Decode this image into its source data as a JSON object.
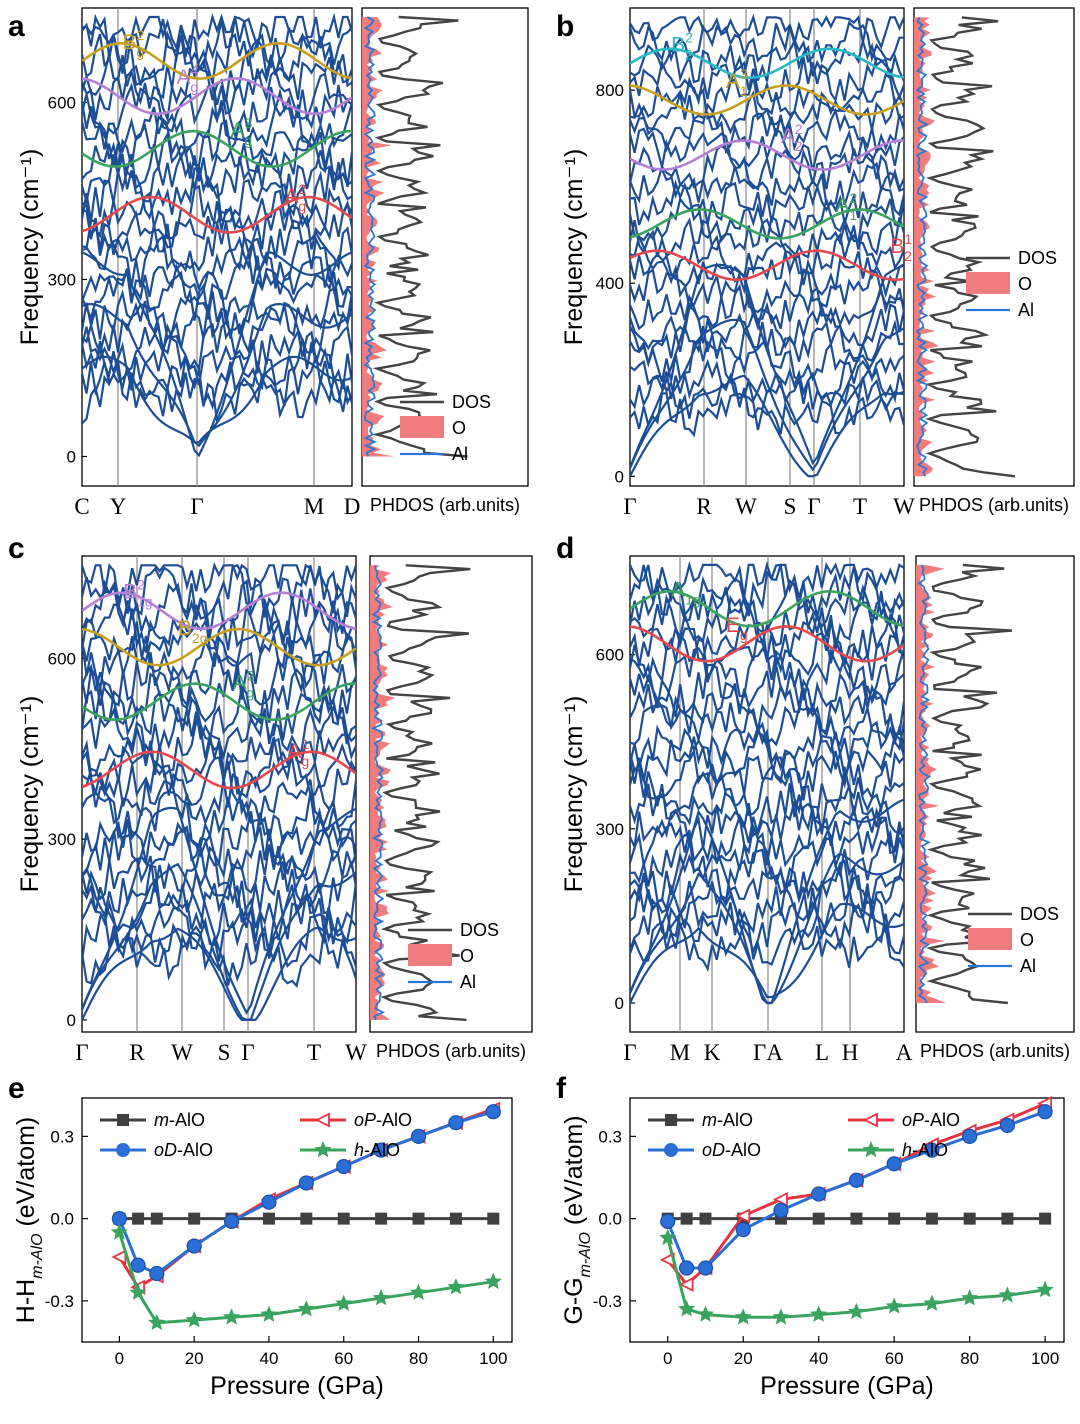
{
  "panels": {
    "a": {
      "label": "a",
      "ylabel": "Frequency (cm⁻¹)",
      "yticks": [
        0,
        300,
        600
      ],
      "ylim": [
        -50,
        760
      ],
      "kpoints": [
        "C",
        "Y",
        "Γ",
        "M",
        "D"
      ],
      "dos_xlabel": "PHDOS (arb.units)",
      "legend": [
        "DOS",
        "O",
        "Al"
      ],
      "modes": [
        {
          "base": "B",
          "sub": "g",
          "sup": "2",
          "color": "#c8a020"
        },
        {
          "base": "A",
          "sub": "g",
          "sup": "4",
          "color": "#b67fd6"
        },
        {
          "base": "A",
          "sub": "g",
          "sup": "3",
          "color": "#3aa35e"
        },
        {
          "base": "A",
          "sub": "g",
          "sup": "2",
          "color": "#e5484d"
        }
      ]
    },
    "b": {
      "label": "b",
      "ylabel": "Frequency (cm⁻¹)",
      "yticks": [
        0,
        400,
        800
      ],
      "ylim": [
        -20,
        970
      ],
      "kpoints": [
        "Γ",
        "R",
        "W",
        "S",
        "Γ",
        "T",
        "W"
      ],
      "dos_xlabel": "PHDOS (arb.units)",
      "legend": [
        "DOS",
        "O",
        "Al"
      ],
      "modes": [
        {
          "base": "B",
          "sub": "2",
          "sup": "2",
          "color": "#29b8c4"
        },
        {
          "base": "A",
          "sub": "1",
          "sup": "3",
          "color": "#c8a020"
        },
        {
          "base": "A",
          "sub": "2",
          "sup": "2",
          "color": "#b67fd6"
        },
        {
          "base": "A",
          "sub": "1",
          "sup": "2",
          "color": "#3aa35e"
        },
        {
          "base": "B",
          "sub": "2",
          "sup": "1",
          "color": "#e5484d"
        }
      ]
    },
    "c": {
      "label": "c",
      "ylabel": "Frequency (cm⁻¹)",
      "yticks": [
        0,
        300,
        600
      ],
      "ylim": [
        -20,
        770
      ],
      "kpoints": [
        "Γ",
        "R",
        "W",
        "S",
        "Γ",
        "T",
        "W"
      ],
      "dos_xlabel": "PHDOS (arb.units)",
      "legend": [
        "DOS",
        "O",
        "Al"
      ],
      "modes": [
        {
          "base": "B",
          "sub": "1g",
          "sup": "2",
          "color": "#b67fd6"
        },
        {
          "base": "B",
          "sub": "2g",
          "sup": "",
          "color": "#c8a020"
        },
        {
          "base": "A",
          "sub": "g",
          "sup": "2",
          "color": "#3aa35e"
        },
        {
          "base": "A",
          "sub": "g",
          "sup": "1",
          "color": "#e5484d"
        }
      ]
    },
    "d": {
      "label": "d",
      "ylabel": "Frequency (cm⁻¹)",
      "yticks": [
        0,
        300,
        600
      ],
      "ylim": [
        -50,
        770
      ],
      "kpoints": [
        "Γ",
        "M",
        "K",
        "ΓA",
        "L",
        "H",
        "A"
      ],
      "dos_xlabel": "PHDOS (arb.units)",
      "legend": [
        "DOS",
        "O",
        "Al"
      ],
      "modes": [
        {
          "base": "A",
          "sub": "1g",
          "sup": "",
          "color": "#3aa35e"
        },
        {
          "base": "E",
          "sub": "g",
          "sup": "",
          "color": "#e5484d"
        }
      ]
    }
  },
  "chart_data": [
    {
      "panel": "e",
      "type": "line",
      "xlabel": "Pressure (GPa)",
      "ylabel": "H-H",
      "ylabel_sub": "m-AlO",
      "ylabel_unit": " (eV/atom)",
      "xlim": [
        -10,
        105
      ],
      "ylim": [
        -0.45,
        0.44
      ],
      "xticks": [
        0,
        20,
        40,
        60,
        80,
        100
      ],
      "yticks": [
        -0.3,
        0.0,
        0.3
      ],
      "legend_loc": "upper left",
      "series": [
        {
          "name_it": "m",
          "name_rest": "-AlO",
          "color": "#404040",
          "marker": "square",
          "x": [
            0,
            5,
            10,
            20,
            30,
            40,
            50,
            60,
            70,
            80,
            90,
            100
          ],
          "y": [
            0,
            0,
            0,
            0,
            0,
            0,
            0,
            0,
            0,
            0,
            0,
            0
          ]
        },
        {
          "name_it": "oP",
          "name_rest": "-AlO",
          "color": "#e5343f",
          "marker": "triangle-left",
          "x": [
            0,
            5,
            10,
            20,
            30,
            40,
            50,
            60,
            70,
            80,
            90,
            100
          ],
          "y": [
            -0.14,
            -0.25,
            -0.21,
            -0.1,
            -0.01,
            0.07,
            0.13,
            0.19,
            0.25,
            0.3,
            0.35,
            0.4
          ]
        },
        {
          "name_it": "oD",
          "name_rest": "-AlO",
          "color": "#2b6fd6",
          "marker": "circle",
          "x": [
            0,
            5,
            10,
            20,
            30,
            40,
            50,
            60,
            70,
            80,
            90,
            100
          ],
          "y": [
            0.0,
            -0.17,
            -0.2,
            -0.1,
            -0.01,
            0.06,
            0.13,
            0.19,
            0.25,
            0.3,
            0.35,
            0.39
          ]
        },
        {
          "name_it": "h",
          "name_rest": "-AlO",
          "color": "#3aa35e",
          "marker": "star",
          "x": [
            0,
            5,
            10,
            20,
            30,
            40,
            50,
            60,
            70,
            80,
            90,
            100
          ],
          "y": [
            -0.05,
            -0.27,
            -0.38,
            -0.37,
            -0.36,
            -0.35,
            -0.33,
            -0.31,
            -0.29,
            -0.27,
            -0.25,
            -0.23
          ]
        }
      ]
    },
    {
      "panel": "f",
      "type": "line",
      "xlabel": "Pressure (GPa)",
      "ylabel": "G-G",
      "ylabel_sub": "m-AlO",
      "ylabel_unit": " (eV/atom)",
      "xlim": [
        -10,
        105
      ],
      "ylim": [
        -0.45,
        0.44
      ],
      "xticks": [
        0,
        20,
        40,
        60,
        80,
        100
      ],
      "yticks": [
        -0.3,
        0.0,
        0.3
      ],
      "legend_loc": "upper left",
      "series": [
        {
          "name_it": "m",
          "name_rest": "-AlO",
          "color": "#404040",
          "marker": "square",
          "x": [
            0,
            5,
            10,
            20,
            30,
            40,
            50,
            60,
            70,
            80,
            90,
            100
          ],
          "y": [
            0,
            0,
            0,
            0,
            0,
            0,
            0,
            0,
            0,
            0,
            0,
            0
          ]
        },
        {
          "name_it": "oP",
          "name_rest": "-AlO",
          "color": "#e5343f",
          "marker": "triangle-left",
          "x": [
            0,
            5,
            10,
            20,
            30,
            40,
            50,
            60,
            70,
            80,
            90,
            100
          ],
          "y": [
            -0.15,
            -0.24,
            -0.18,
            0.01,
            0.07,
            0.09,
            0.14,
            0.2,
            0.27,
            0.32,
            0.36,
            0.42
          ]
        },
        {
          "name_it": "oD",
          "name_rest": "-AlO",
          "color": "#2b6fd6",
          "marker": "circle",
          "x": [
            0,
            5,
            10,
            20,
            30,
            40,
            50,
            60,
            70,
            80,
            90,
            100
          ],
          "y": [
            -0.01,
            -0.18,
            -0.18,
            -0.04,
            0.03,
            0.09,
            0.14,
            0.2,
            0.25,
            0.3,
            0.34,
            0.39
          ]
        },
        {
          "name_it": "h",
          "name_rest": "-AlO",
          "color": "#3aa35e",
          "marker": "star",
          "x": [
            0,
            5,
            10,
            20,
            30,
            40,
            50,
            60,
            70,
            80,
            90,
            100
          ],
          "y": [
            -0.07,
            -0.33,
            -0.35,
            -0.36,
            -0.36,
            -0.35,
            -0.34,
            -0.32,
            -0.31,
            -0.29,
            -0.28,
            -0.26
          ]
        }
      ]
    }
  ]
}
